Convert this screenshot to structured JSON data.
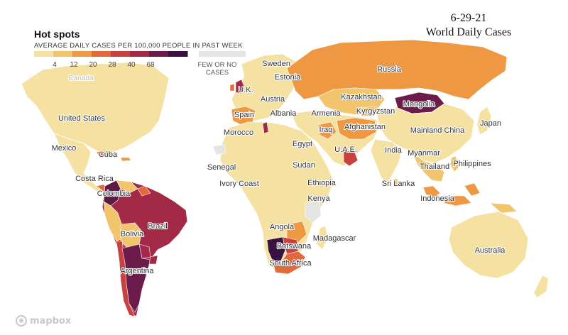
{
  "date_text": "6-29-21",
  "title_text": "World Daily Cases",
  "legend": {
    "title": "Hot spots",
    "subtitle": "AVERAGE DAILY CASES PER 100,000 PEOPLE IN PAST WEEK",
    "ticks": [
      "4",
      "12",
      "20",
      "28",
      "40",
      "68"
    ],
    "colors": [
      "#f5e2a2",
      "#f2c46b",
      "#ee9843",
      "#e06a3b",
      "#c9413f",
      "#a22a47",
      "#6b1c4a",
      "#3a1140"
    ],
    "few_or_no_label_line1": "FEW OR NO",
    "few_or_no_label_line2": "CASES",
    "few_or_no_color": "#e4e4e4"
  },
  "countries": [
    {
      "name": "Canada",
      "light": true
    },
    {
      "name": "United States"
    },
    {
      "name": "Mexico"
    },
    {
      "name": "Cuba"
    },
    {
      "name": "Costa Rica"
    },
    {
      "name": "Colombia"
    },
    {
      "name": "Brazil"
    },
    {
      "name": "Bolivia"
    },
    {
      "name": "Argentina"
    },
    {
      "name": "Sweden"
    },
    {
      "name": "Estonia"
    },
    {
      "name": "U.K."
    },
    {
      "name": "Austria"
    },
    {
      "name": "Spain"
    },
    {
      "name": "Albania"
    },
    {
      "name": "Morocco"
    },
    {
      "name": "Russia"
    },
    {
      "name": "Kazakhstan"
    },
    {
      "name": "Kyrgyzstan"
    },
    {
      "name": "Mongolia"
    },
    {
      "name": "Armenia"
    },
    {
      "name": "Iraq"
    },
    {
      "name": "Afghanistan"
    },
    {
      "name": "Mainland China"
    },
    {
      "name": "Japan"
    },
    {
      "name": "Egypt"
    },
    {
      "name": "U.A.E."
    },
    {
      "name": "India"
    },
    {
      "name": "Myanmar"
    },
    {
      "name": "Thailand"
    },
    {
      "name": "Philippines"
    },
    {
      "name": "Senegal"
    },
    {
      "name": "Sudan"
    },
    {
      "name": "Ivory Coast"
    },
    {
      "name": "Ethiopia"
    },
    {
      "name": "Sri Lanka"
    },
    {
      "name": "Kenya"
    },
    {
      "name": "Indonesia"
    },
    {
      "name": "Angola"
    },
    {
      "name": "Madagascar"
    },
    {
      "name": "Botswana"
    },
    {
      "name": "South Africa"
    },
    {
      "name": "Australia"
    }
  ],
  "credit": {
    "text": "mapbox",
    "icon": "mapbox-logo-icon"
  }
}
